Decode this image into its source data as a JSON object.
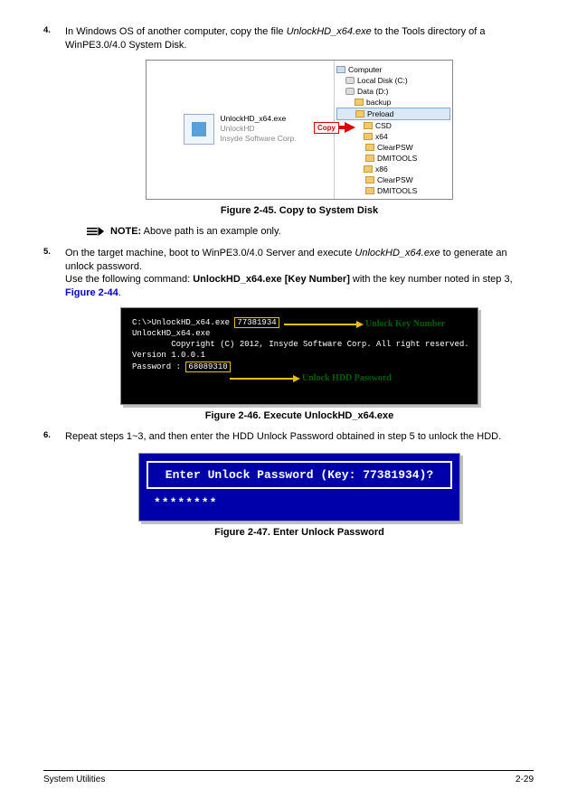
{
  "steps": {
    "s4": {
      "num": "4.",
      "part1": "In Windows OS of another computer, copy the file ",
      "file": "UnlockHD_x64.exe",
      "part2": " to the Tools directory of a WinPE3.0/4.0 System Disk."
    },
    "s5": {
      "num": "5.",
      "line1a": "On the target machine, boot to WinPE3.0/4.0 Server and execute ",
      "line1b": "UnlockHD_x64.exe",
      "line1c": " to generate an unlock password.",
      "line2a": "Use the following command:  ",
      "cmd": "UnlockHD_x64.exe [Key Number]",
      "line2b": " with the key number noted in step 3, ",
      "figref": "Figure 2-44",
      "dot": "."
    },
    "s6": {
      "num": "6.",
      "text": "Repeat steps 1~3, and then enter the HDD Unlock Password obtained in step 5 to unlock the HDD."
    }
  },
  "note": {
    "label": "NOTE:",
    "text": " Above path is an example only."
  },
  "captions": {
    "f45": "Figure 2-45.   Copy to System Disk",
    "f46": "Figure 2-46.   Execute UnlockHD_x64.exe",
    "f47": "Figure 2-47.   Enter Unlock Password"
  },
  "fig45": {
    "copy_label": "Copy",
    "file": {
      "name": "UnlockHD_x64.exe",
      "prod": "UnlockHD",
      "corp": "Insyde Software Corp."
    },
    "tree": [
      {
        "label": "Computer",
        "icon": "comp",
        "indent": "ind0"
      },
      {
        "label": "Local Disk (C:)",
        "icon": "disk",
        "indent": "ind1"
      },
      {
        "label": "Data (D:)",
        "icon": "disk",
        "indent": "ind1"
      },
      {
        "label": "backup",
        "icon": "f",
        "indent": "ind2"
      },
      {
        "label": "Preload",
        "icon": "f",
        "indent": "ind2",
        "sel": true
      },
      {
        "label": "CSD",
        "icon": "f",
        "indent": "ind3"
      },
      {
        "label": "x64",
        "icon": "f",
        "indent": "ind3"
      },
      {
        "label": "ClearPSW",
        "icon": "f",
        "indent": "ind4"
      },
      {
        "label": "DMITOOLS",
        "icon": "f",
        "indent": "ind4"
      },
      {
        "label": "x86",
        "icon": "f",
        "indent": "ind3"
      },
      {
        "label": "ClearPSW",
        "icon": "f",
        "indent": "ind4"
      },
      {
        "label": "DMITOOLS",
        "icon": "f",
        "indent": "ind4"
      }
    ]
  },
  "fig46": {
    "lines": {
      "l1a": "C:\\>UnlockHD_x64.exe ",
      "l1_key": "77381934",
      "l2": "UnlockHD_x64.exe",
      "l3": "        Copyright (C) 2012, Insyde Software Corp. All right reserved.",
      "l4": "Version 1.0.0.1",
      "l5a": "Password : ",
      "l5_pwd": "68089310"
    },
    "ann1": "Unlock Key Number",
    "ann2": "Unlock HDD Password"
  },
  "fig47": {
    "prompt": "Enter Unlock Password (Key: 77381934)?",
    "masked": "********"
  },
  "footer": {
    "left": "System Utilities",
    "right": "2-29"
  }
}
